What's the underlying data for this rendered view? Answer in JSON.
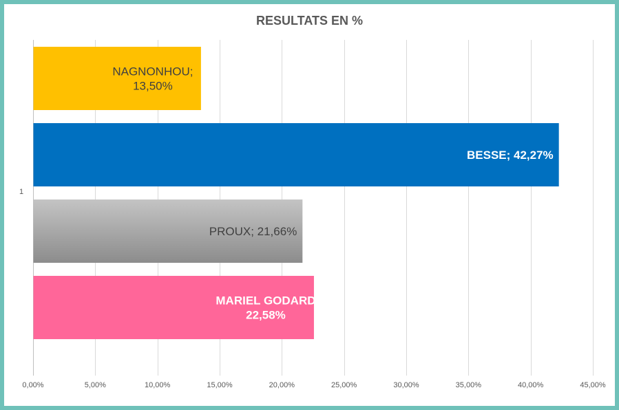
{
  "chart_data": {
    "type": "bar",
    "orientation": "horizontal",
    "title": "RESULTATS EN %",
    "category_label": "1",
    "xlabel": "",
    "ylabel": "",
    "xlim": [
      0,
      45
    ],
    "x_ticks": [
      0,
      5,
      10,
      15,
      20,
      25,
      30,
      35,
      40,
      45
    ],
    "x_tick_labels": [
      "0,00%",
      "5,00%",
      "10,00%",
      "15,00%",
      "20,00%",
      "25,00%",
      "30,00%",
      "35,00%",
      "40,00%",
      "45,00%"
    ],
    "grid": true,
    "legend": "none",
    "series": [
      {
        "name": "NAGNONHOU",
        "value": 13.5,
        "label_lines": [
          "NAGNONHOU;",
          "13,50%"
        ],
        "color": "#ffc000",
        "label_color": "#404040",
        "label_bold": false
      },
      {
        "name": "BESSE",
        "value": 42.27,
        "label_lines": [
          "BESSE; 42,27%"
        ],
        "color": "#0070c0",
        "label_color": "#ffffff",
        "label_bold": true
      },
      {
        "name": "PROUX",
        "value": 21.66,
        "label_lines": [
          "PROUX; 21,66%"
        ],
        "color": "#a6a6a6",
        "label_color": "#404040",
        "label_bold": false
      },
      {
        "name": "MARIEL GODARD",
        "value": 22.58,
        "label_lines": [
          "MARIEL GODARD",
          "22,58%"
        ],
        "color": "#ff6699",
        "label_color": "#ffffff",
        "label_bold": true
      }
    ]
  }
}
